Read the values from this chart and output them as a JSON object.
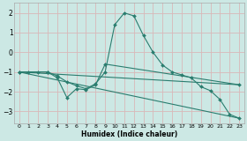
{
  "xlabel": "Humidex (Indice chaleur)",
  "background_color": "#cce8e4",
  "grid_color": "#d9b8b8",
  "line_color": "#2a7d6f",
  "xlim": [
    -0.5,
    23.5
  ],
  "ylim": [
    -3.6,
    2.5
  ],
  "yticks": [
    -3,
    -2,
    -1,
    0,
    1,
    2
  ],
  "xticks": [
    0,
    1,
    2,
    3,
    4,
    5,
    6,
    7,
    8,
    9,
    10,
    11,
    12,
    13,
    14,
    15,
    16,
    17,
    18,
    19,
    20,
    21,
    22,
    23
  ],
  "series1_x": [
    0,
    1,
    2,
    3,
    4,
    5,
    6,
    7,
    8,
    9,
    10,
    11,
    12,
    13,
    14,
    15,
    16,
    17,
    18,
    19,
    20,
    21,
    22,
    23
  ],
  "series1_y": [
    -1.0,
    -1.0,
    -1.0,
    -1.0,
    -1.2,
    -1.5,
    -1.7,
    -1.85,
    -1.6,
    -1.0,
    1.4,
    2.0,
    1.85,
    0.85,
    0.0,
    -0.65,
    -1.0,
    -1.15,
    -1.3,
    -1.75,
    -1.95,
    -2.4,
    -3.15,
    -3.35
  ],
  "series2_x": [
    0,
    3,
    4,
    5,
    6,
    7,
    8,
    9,
    23
  ],
  "series2_y": [
    -1.0,
    -1.0,
    -1.3,
    -2.3,
    -1.85,
    -1.9,
    -1.65,
    -0.6,
    -1.65
  ],
  "series3_x": [
    0,
    23
  ],
  "series3_y": [
    -1.0,
    -1.65
  ],
  "series4_x": [
    0,
    23
  ],
  "series4_y": [
    -1.0,
    -3.35
  ]
}
